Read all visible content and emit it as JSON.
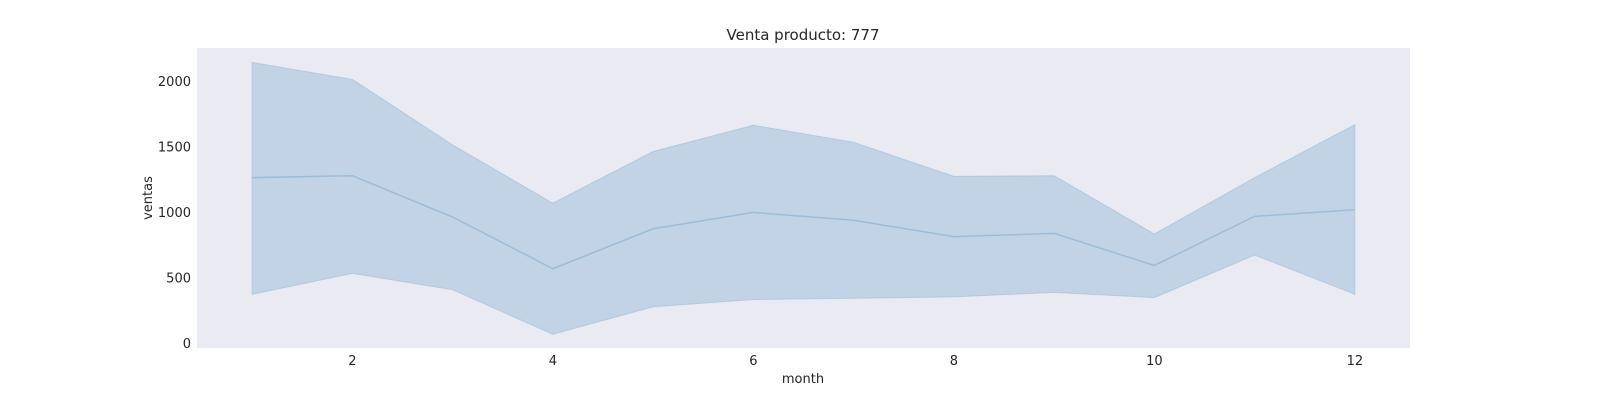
{
  "chart_data": {
    "type": "line",
    "title": "Venta producto: 777",
    "xlabel": "month",
    "ylabel": "ventas",
    "xlim": [
      0.45,
      12.55
    ],
    "ylim": [
      -40,
      2250
    ],
    "xticks": [
      2,
      4,
      6,
      8,
      10,
      12
    ],
    "yticks": [
      0,
      500,
      1000,
      1500,
      2000
    ],
    "grid": false,
    "background": "#eaeaf2",
    "line_color": "#9dbcd8",
    "band_color": "#c2d3e5",
    "x": [
      1,
      2,
      3,
      4,
      5,
      6,
      7,
      8,
      9,
      10,
      11,
      12
    ],
    "series": [
      {
        "values": [
          1260,
          1275,
          960,
          565,
          870,
          995,
          935,
          810,
          835,
          590,
          965,
          1015
        ],
        "lower": [
          370,
          530,
          405,
          65,
          275,
          330,
          340,
          350,
          385,
          345,
          670,
          370
        ],
        "upper": [
          2140,
          2010,
          1510,
          1065,
          1460,
          1660,
          1530,
          1270,
          1275,
          830,
          1260,
          1665
        ]
      }
    ]
  }
}
